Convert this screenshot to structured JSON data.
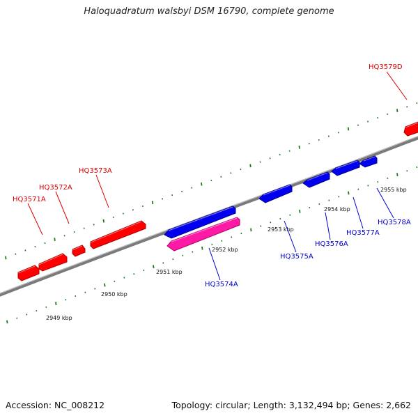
{
  "title": "Haloquadratum walsbyi DSM 16790, complete genome",
  "footer": {
    "accession": "Accession: NC_008212",
    "summary": "Topology: circular; Length: 3,132,494 bp; Genes: 2,662"
  },
  "colors": {
    "backbone": "#7a7a7a",
    "ticks": "#1f7a1f",
    "forward_gene": "#ff0000",
    "reverse_gene": "#0000ee",
    "rna_gene": "#ff1aa6",
    "forward_label": "#dd0000",
    "reverse_label": "#0000cc"
  },
  "scale_labels": [
    "2949 kbp",
    "2950 kbp",
    "2951 kbp",
    "2952 kbp",
    "2953 kbp",
    "2954 kbp",
    "2955 kbp"
  ],
  "genes": [
    {
      "label": "HQ3571A",
      "strand": "forward",
      "color": "forward_gene"
    },
    {
      "label": "HQ3572A",
      "strand": "forward",
      "color": "forward_gene"
    },
    {
      "label": "",
      "strand": "forward",
      "color": "forward_gene"
    },
    {
      "label": "HQ3573A",
      "strand": "forward",
      "color": "forward_gene"
    },
    {
      "label": "HQ3574A",
      "strand": "reverse",
      "color": "reverse_gene"
    },
    {
      "label": "",
      "strand": "reverse",
      "color": "rna_gene"
    },
    {
      "label": "HQ3575A",
      "strand": "reverse",
      "color": "reverse_gene"
    },
    {
      "label": "HQ3576A",
      "strand": "reverse",
      "color": "reverse_gene"
    },
    {
      "label": "HQ3577A",
      "strand": "reverse",
      "color": "reverse_gene"
    },
    {
      "label": "HQ3578A",
      "strand": "reverse",
      "color": "reverse_gene"
    },
    {
      "label": "HQ3579D",
      "strand": "forward",
      "color": "forward_gene"
    }
  ]
}
